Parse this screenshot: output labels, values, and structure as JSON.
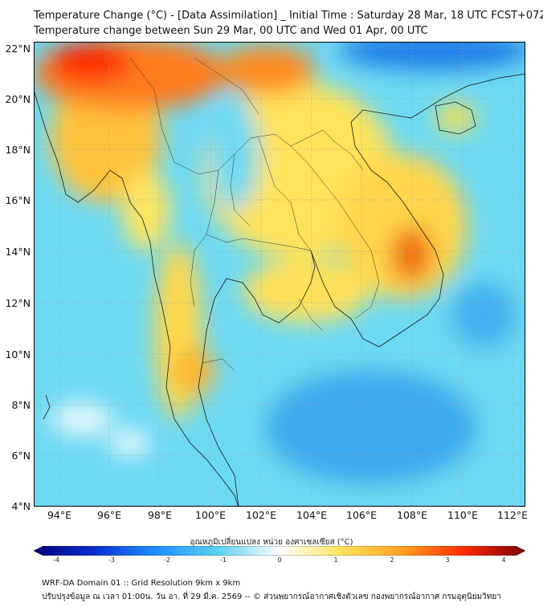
{
  "header": {
    "title_line1": "Temperature Change (°C) - [Data Assimilation] _ Initial Time : Saturday 28 Mar, 18 UTC FCST+072",
    "title_line2": "Temperature change between Sun 29 Mar, 00 UTC and Wed 01 Apr, 00 UTC"
  },
  "map": {
    "lat_labels": [
      "22°N",
      "20°N",
      "18°N",
      "16°N",
      "14°N",
      "12°N",
      "10°N",
      "8°N",
      "6°N",
      "4°N"
    ],
    "lon_labels": [
      "94°E",
      "96°E",
      "98°E",
      "100°E",
      "102°E",
      "104°E",
      "106°E",
      "108°E",
      "110°E",
      "112°E"
    ],
    "lat_range": [
      4,
      22
    ],
    "lon_range": [
      93,
      112.5
    ]
  },
  "colorbar": {
    "title": "อุณหภูมิเปลี่ยนแปลง หน่วย องศาเซลเซียส (°C)",
    "range": [
      -4,
      4
    ],
    "ticks": [
      "-4",
      "-3",
      "-2",
      "-1",
      "0",
      "1",
      "2",
      "3",
      "4"
    ],
    "colors": {
      "min": "#00008b",
      "cold": "#1e90ff",
      "cool": "#5ad2f0",
      "neutral": "#ffffff",
      "warm": "#ffe45a",
      "hot": "#ff7a00",
      "max": "#7a0000"
    }
  },
  "footer": {
    "line1": "WRF-DA Domain 01 :: Grid Resolution 9km x 9km",
    "line2": "ปรับปรุงข้อมูล ณ เวลา 01:00น. วัน อา. ที่ 29 มี.ค. 2569 -- © ส่วนพยากรณ์อากาศเชิงตัวเลข กองพยากรณ์อากาศ กรมอุตุนิยมวิทยา"
  }
}
